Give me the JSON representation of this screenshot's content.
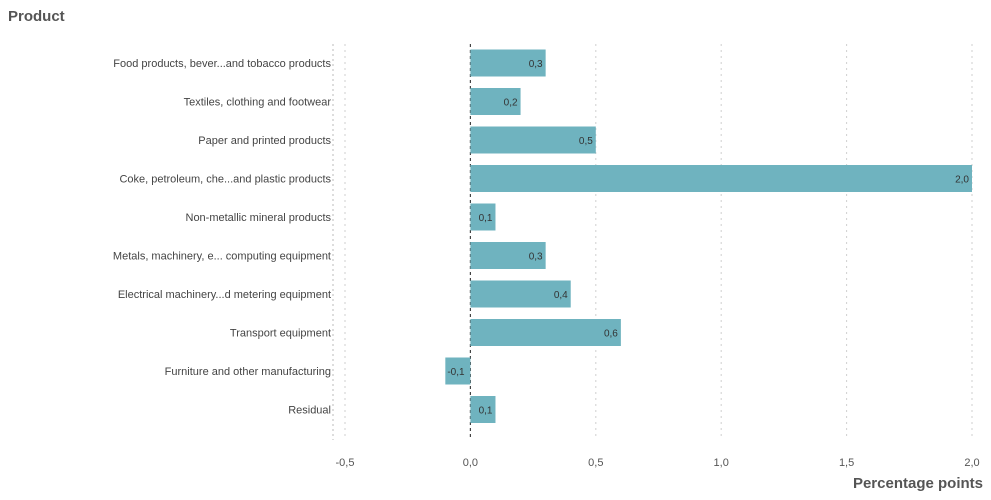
{
  "chart_data": {
    "type": "bar",
    "orientation": "horizontal",
    "ylabel": "Product",
    "xlabel": "Percentage points",
    "categories": [
      "Food products, bever...and tobacco products",
      "Textiles, clothing and footwear",
      "Paper and printed products",
      "Coke, petroleum, che...and plastic products",
      "Non-metallic mineral products",
      "Metals, machinery, e... computing equipment",
      "Electrical machinery...d metering equipment",
      "Transport equipment",
      "Furniture and other manufacturing",
      "Residual"
    ],
    "values": [
      0.3,
      0.2,
      0.5,
      2.0,
      0.1,
      0.3,
      0.4,
      0.6,
      -0.1,
      0.1
    ],
    "value_labels": [
      "0,3",
      "0,2",
      "0,5",
      "2,0",
      "0,1",
      "0,3",
      "0,4",
      "0,6",
      "-0,1",
      "0,1"
    ],
    "xlim": [
      -0.5,
      2.0
    ],
    "xticks": [
      -0.5,
      0.0,
      0.5,
      1.0,
      1.5,
      2.0
    ],
    "xtick_labels": [
      "-0,5",
      "0,0",
      "0,5",
      "1,0",
      "1,5",
      "2,0"
    ],
    "grid": true,
    "bar_color": "#6fb3bf"
  }
}
